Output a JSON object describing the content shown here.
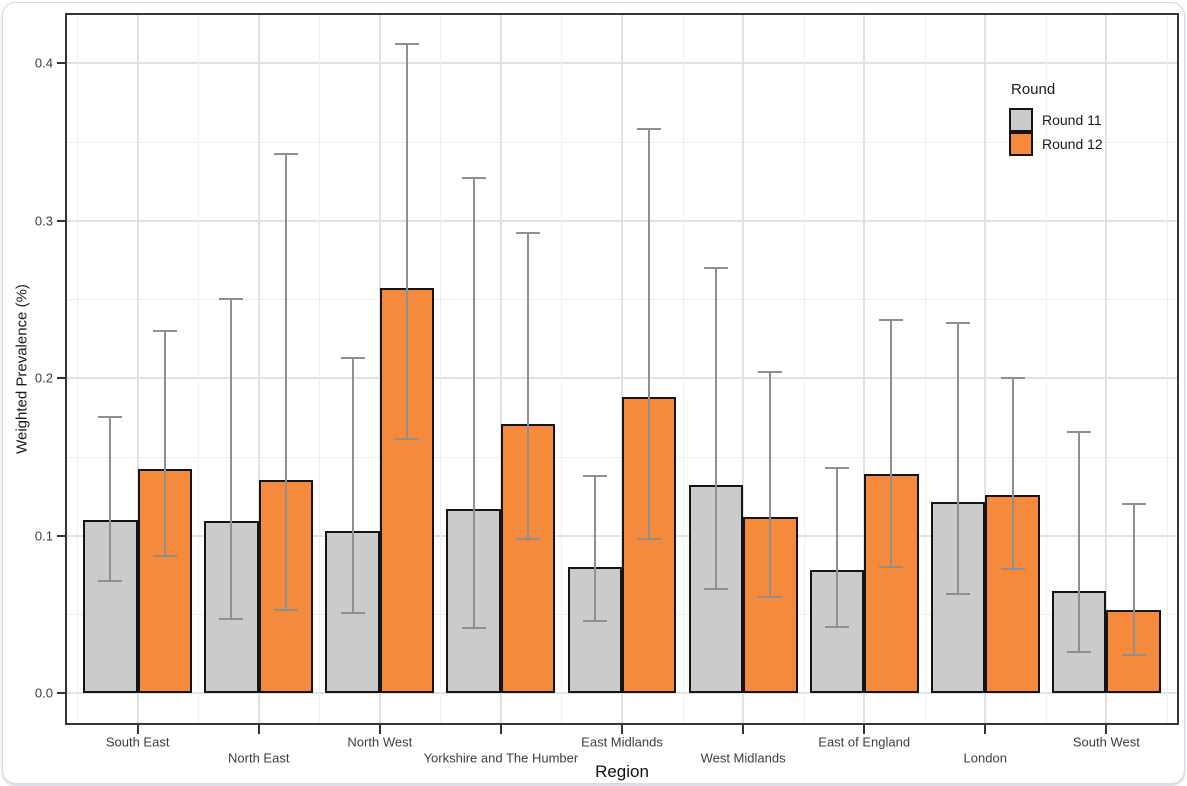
{
  "accent_colors": {
    "round11_fill": "#CBCBCB",
    "round12_fill": "#F68A3C",
    "bar_border": "#141414",
    "error_bar": "#8F8F8F",
    "panel_border": "#363636",
    "grid_major": "#E2E2E2",
    "grid_minor": "#EFEFEF"
  },
  "chart_data": {
    "type": "bar",
    "title": "",
    "xlabel": "Region",
    "ylabel": "Weighted Prevalence (%)",
    "ylim": [
      0,
      0.432
    ],
    "ytick_labels": [
      "0.0",
      "0.1",
      "0.2",
      "0.3",
      "0.4"
    ],
    "ytick_values": [
      0.0,
      0.1,
      0.2,
      0.3,
      0.4
    ],
    "yminor_values": [
      0.05,
      0.15,
      0.25,
      0.35
    ],
    "grid": true,
    "legend": {
      "title": "Round",
      "position": "top-right-inside"
    },
    "categories": [
      "South East",
      "North East",
      "North West",
      "Yorkshire and The Humber",
      "East Midlands",
      "West Midlands",
      "East of England",
      "London",
      "South West"
    ],
    "series": [
      {
        "name": "Round 11",
        "color": "#CBCBCB",
        "values": [
          0.11,
          0.109,
          0.103,
          0.117,
          0.08,
          0.132,
          0.078,
          0.121,
          0.065
        ],
        "ci_low": [
          0.071,
          0.047,
          0.051,
          0.041,
          0.046,
          0.066,
          0.042,
          0.063,
          0.026
        ],
        "ci_high": [
          0.175,
          0.25,
          0.213,
          0.327,
          0.138,
          0.27,
          0.143,
          0.235,
          0.166
        ]
      },
      {
        "name": "Round 12",
        "color": "#F68A3C",
        "values": [
          0.142,
          0.135,
          0.257,
          0.171,
          0.188,
          0.112,
          0.139,
          0.126,
          0.053
        ],
        "ci_low": [
          0.087,
          0.053,
          0.161,
          0.098,
          0.098,
          0.061,
          0.08,
          0.079,
          0.024
        ],
        "ci_high": [
          0.23,
          0.342,
          0.412,
          0.292,
          0.358,
          0.204,
          0.237,
          0.2,
          0.12
        ]
      }
    ]
  }
}
